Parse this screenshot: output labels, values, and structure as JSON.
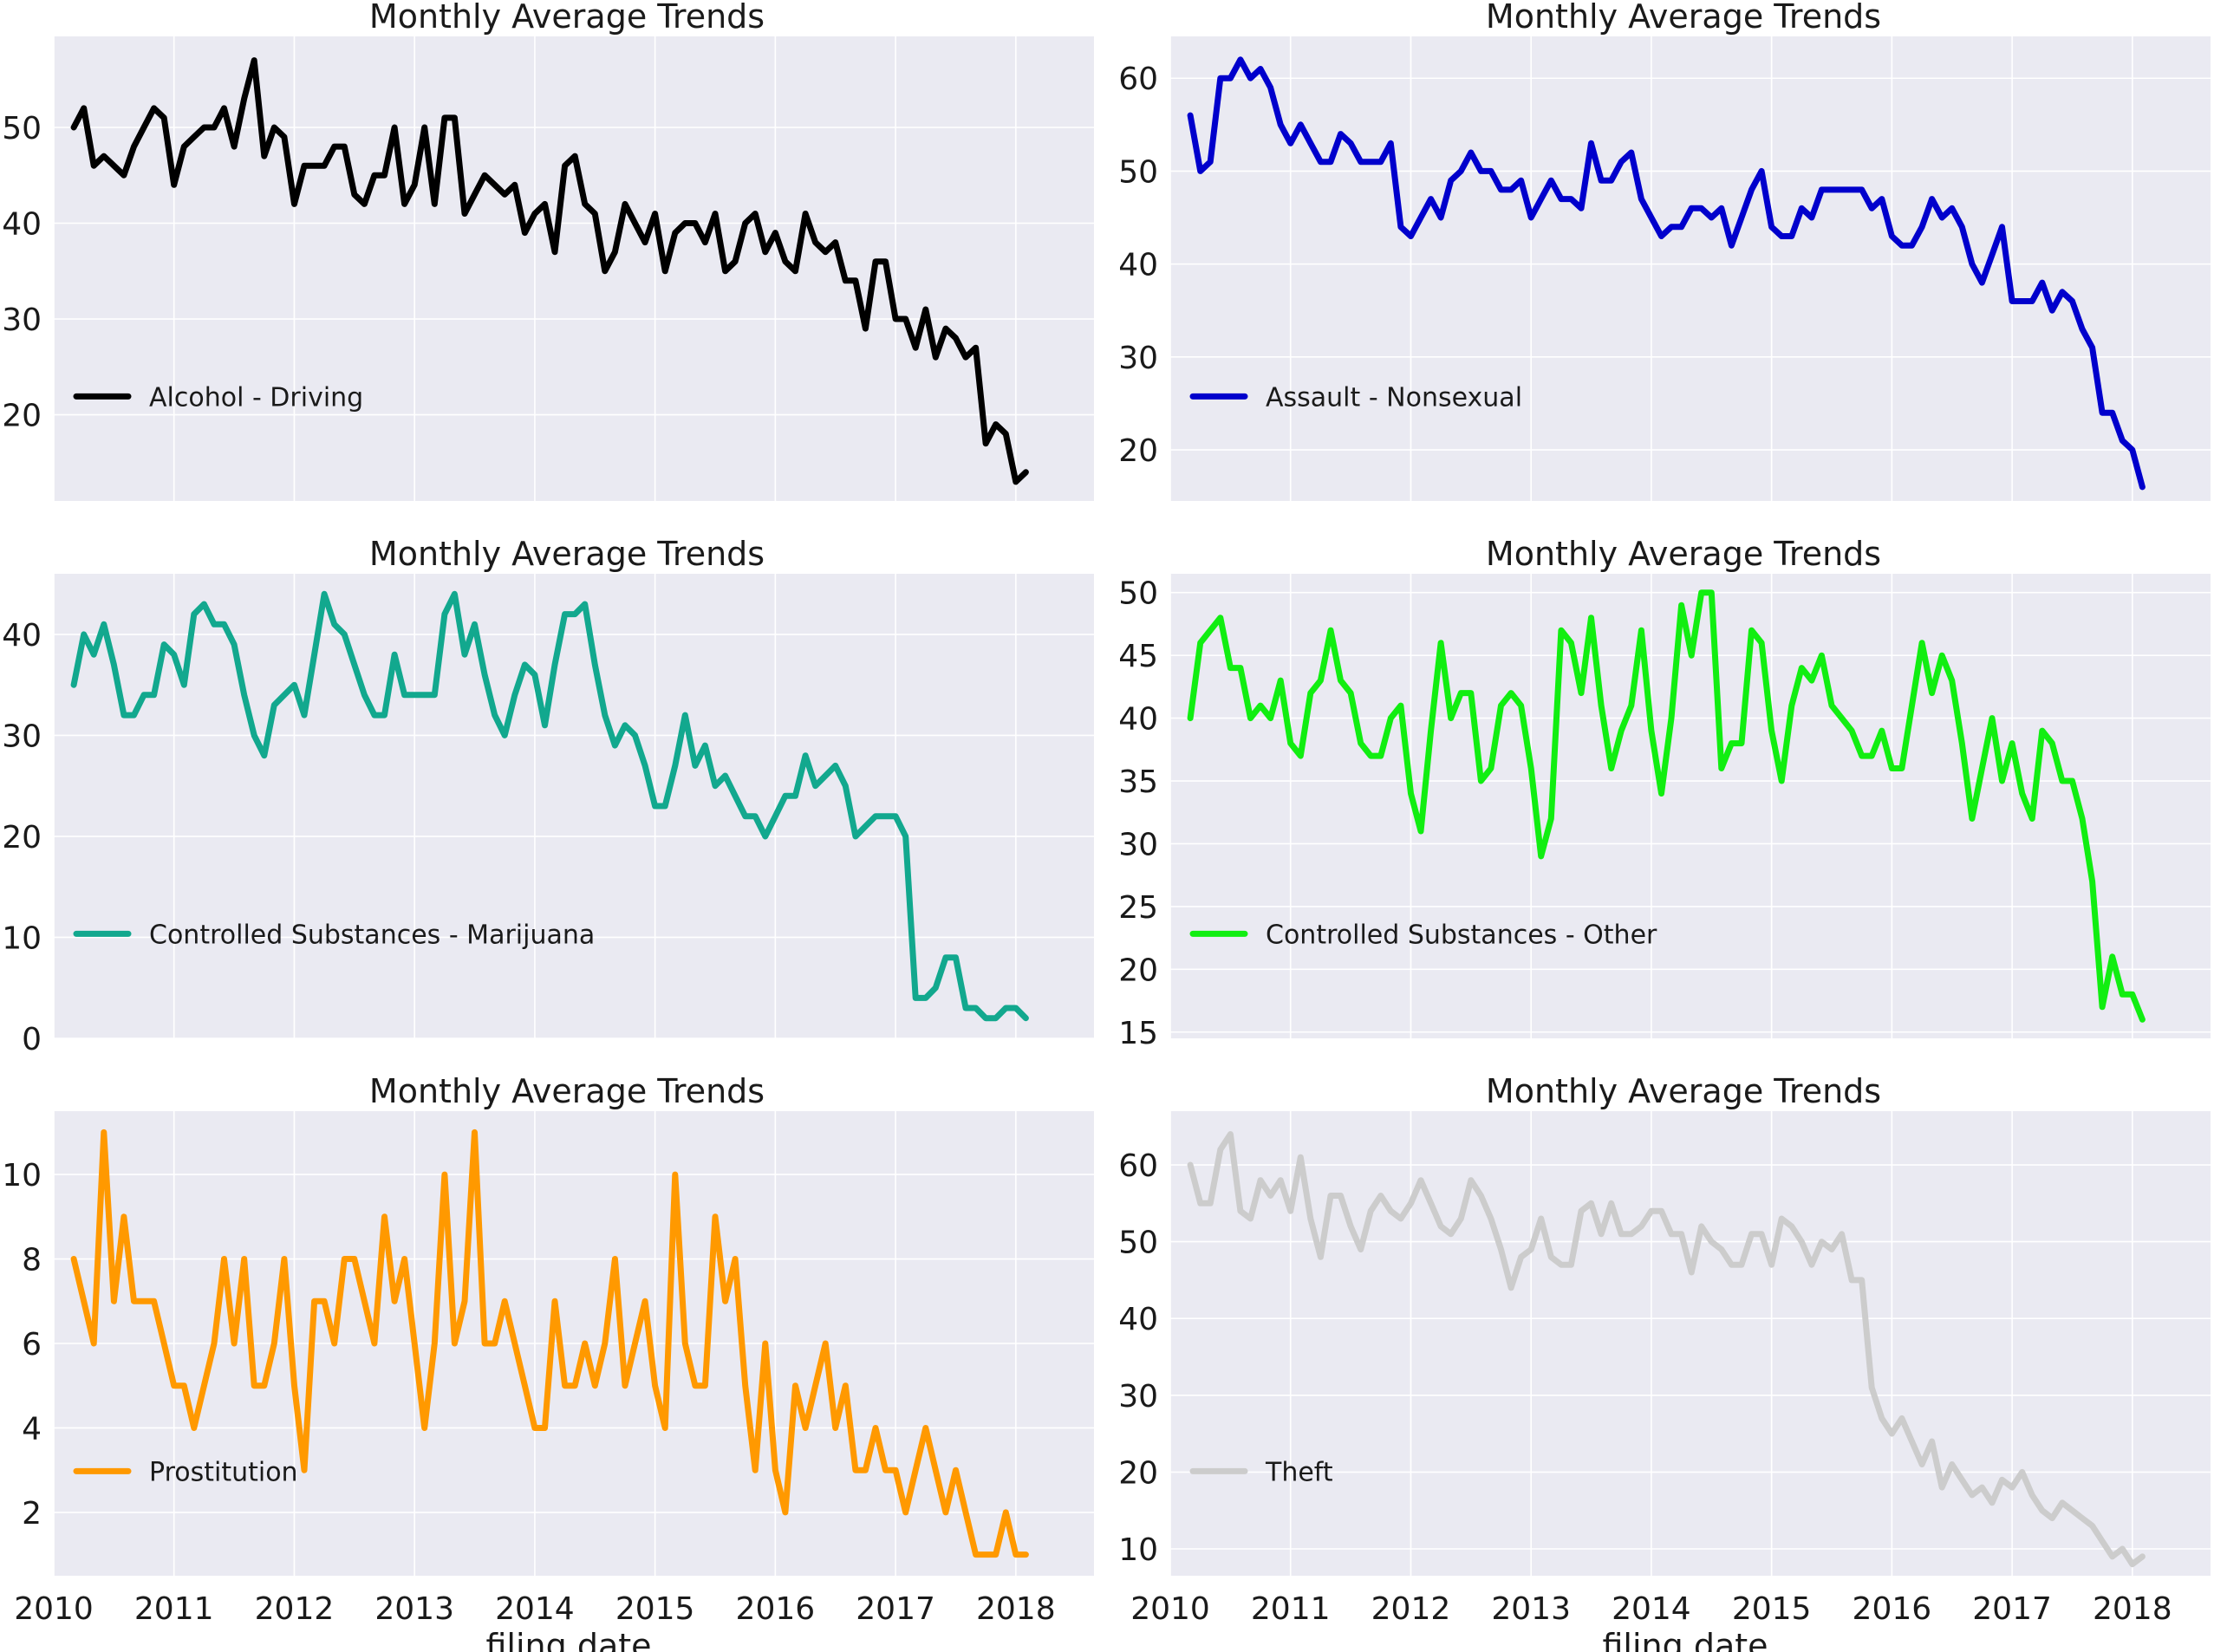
{
  "chart_data": [
    {
      "type": "line",
      "title": "Monthly Average Trends",
      "xlabel": "",
      "ylabel": "",
      "x_start": "2010-03",
      "xlim": [
        2010.0,
        2018.65
      ],
      "ylim": [
        11,
        59.5
      ],
      "yticks": [
        20,
        30,
        40,
        50
      ],
      "xticks": [],
      "grid": true,
      "legend_placement": "center-left",
      "series": [
        {
          "name": "Alcohol - Driving",
          "color": "#000000",
          "values": [
            50,
            52,
            46,
            47,
            46,
            45,
            48,
            50,
            52,
            51,
            44,
            48,
            49,
            50,
            50,
            52,
            48,
            53,
            57,
            47,
            50,
            49,
            42,
            46,
            46,
            46,
            48,
            48,
            43,
            42,
            45,
            45,
            50,
            42,
            44,
            50,
            42,
            51,
            51,
            41,
            43,
            45,
            44,
            43,
            44,
            39,
            41,
            42,
            37,
            46,
            47,
            42,
            41,
            35,
            37,
            42,
            40,
            38,
            41,
            35,
            39,
            40,
            40,
            38,
            41,
            35,
            36,
            40,
            41,
            37,
            39,
            36,
            35,
            41,
            38,
            37,
            38,
            34,
            34,
            29,
            36,
            36,
            30,
            30,
            27,
            31,
            26,
            29,
            28,
            26,
            27,
            17,
            19,
            18,
            13,
            14
          ]
        }
      ]
    },
    {
      "type": "line",
      "title": "Monthly Average Trends",
      "xlabel": "",
      "ylabel": "",
      "x_start": "2010-03",
      "xlim": [
        2010.0,
        2018.65
      ],
      "ylim": [
        14.5,
        64.5
      ],
      "yticks": [
        20,
        30,
        40,
        50,
        60
      ],
      "xticks": [],
      "grid": true,
      "legend_placement": "center-left",
      "series": [
        {
          "name": "Assault - Nonsexual",
          "color": "#0000cc",
          "values": [
            56,
            50,
            51,
            60,
            60,
            62,
            60,
            61,
            59,
            55,
            53,
            55,
            53,
            51,
            51,
            54,
            53,
            51,
            51,
            51,
            53,
            44,
            43,
            45,
            47,
            45,
            49,
            50,
            52,
            50,
            50,
            48,
            48,
            49,
            45,
            47,
            49,
            47,
            47,
            46,
            53,
            49,
            49,
            51,
            52,
            47,
            45,
            43,
            44,
            44,
            46,
            46,
            45,
            46,
            42,
            45,
            48,
            50,
            44,
            43,
            43,
            46,
            45,
            48,
            48,
            48,
            48,
            48,
            46,
            47,
            43,
            42,
            42,
            44,
            47,
            45,
            46,
            44,
            40,
            38,
            41,
            44,
            36,
            36,
            36,
            38,
            35,
            37,
            36,
            33,
            31,
            24,
            24,
            21,
            20,
            16
          ]
        }
      ]
    },
    {
      "type": "line",
      "title": "Monthly Average Trends",
      "xlabel": "",
      "ylabel": "",
      "x_start": "2010-03",
      "xlim": [
        2010.0,
        2018.65
      ],
      "ylim": [
        0,
        46
      ],
      "yticks": [
        0,
        10,
        20,
        30,
        40
      ],
      "xticks": [],
      "grid": true,
      "legend_placement": "center-left",
      "series": [
        {
          "name": "Controlled Substances - Marijuana",
          "color": "#12a88e",
          "values": [
            35,
            40,
            38,
            41,
            37,
            32,
            32,
            34,
            34,
            39,
            38,
            35,
            42,
            43,
            41,
            41,
            39,
            34,
            30,
            28,
            33,
            34,
            35,
            32,
            38,
            44,
            41,
            40,
            37,
            34,
            32,
            32,
            38,
            34,
            34,
            34,
            34,
            42,
            44,
            38,
            41,
            36,
            32,
            30,
            34,
            37,
            36,
            31,
            37,
            42,
            42,
            43,
            37,
            32,
            29,
            31,
            30,
            27,
            23,
            23,
            27,
            32,
            27,
            29,
            25,
            26,
            24,
            22,
            22,
            20,
            22,
            24,
            24,
            28,
            25,
            26,
            27,
            25,
            20,
            21,
            22,
            22,
            22,
            20,
            4,
            4,
            5,
            8,
            8,
            3,
            3,
            2,
            2,
            3,
            3,
            2
          ]
        }
      ]
    },
    {
      "type": "line",
      "title": "Monthly Average Trends",
      "xlabel": "",
      "ylabel": "",
      "x_start": "2010-03",
      "xlim": [
        2010.0,
        2018.65
      ],
      "ylim": [
        14.5,
        51.5
      ],
      "yticks": [
        15,
        20,
        25,
        30,
        35,
        40,
        45,
        50
      ],
      "xticks": [],
      "grid": true,
      "legend_placement": "center-left",
      "series": [
        {
          "name": "Controlled Substances - Other",
          "color": "#11ee11",
          "values": [
            40,
            46,
            47,
            48,
            44,
            44,
            40,
            41,
            40,
            43,
            38,
            37,
            42,
            43,
            47,
            43,
            42,
            38,
            37,
            37,
            40,
            41,
            34,
            31,
            39,
            46,
            40,
            42,
            42,
            35,
            36,
            41,
            42,
            41,
            36,
            29,
            32,
            47,
            46,
            42,
            48,
            41,
            36,
            39,
            41,
            47,
            39,
            34,
            40,
            49,
            45,
            50,
            50,
            36,
            38,
            38,
            47,
            46,
            39,
            35,
            41,
            44,
            43,
            45,
            41,
            40,
            39,
            37,
            37,
            39,
            36,
            36,
            41,
            46,
            42,
            45,
            43,
            38,
            32,
            36,
            40,
            35,
            38,
            34,
            32,
            39,
            38,
            35,
            35,
            32,
            27,
            17,
            21,
            18,
            18,
            16
          ]
        }
      ]
    },
    {
      "type": "line",
      "title": "Monthly Average Trends",
      "xlabel": "filing date",
      "ylabel": "",
      "x_start": "2010-03",
      "xlim": [
        2010.0,
        2018.65
      ],
      "ylim": [
        0.5,
        11.5
      ],
      "yticks": [
        2,
        4,
        6,
        8,
        10
      ],
      "xticks": [
        2010,
        2011,
        2012,
        2013,
        2014,
        2015,
        2016,
        2017,
        2018
      ],
      "grid": true,
      "legend_placement": "center-left",
      "series": [
        {
          "name": "Prostitution",
          "color": "#ff9900",
          "values": [
            8,
            7,
            6,
            11,
            7,
            9,
            7,
            7,
            7,
            6,
            5,
            5,
            4,
            5,
            6,
            8,
            6,
            8,
            5,
            5,
            6,
            8,
            5,
            3,
            7,
            7,
            6,
            8,
            8,
            7,
            6,
            9,
            7,
            8,
            6,
            4,
            6,
            10,
            6,
            7,
            11,
            6,
            6,
            7,
            6,
            5,
            4,
            4,
            7,
            5,
            5,
            6,
            5,
            6,
            8,
            5,
            6,
            7,
            5,
            4,
            10,
            6,
            5,
            5,
            9,
            7,
            8,
            5,
            3,
            6,
            3,
            2,
            5,
            4,
            5,
            6,
            4,
            5,
            3,
            3,
            4,
            3,
            3,
            2,
            3,
            4,
            3,
            2,
            3,
            2,
            1,
            1,
            1,
            2,
            1,
            1
          ]
        }
      ]
    },
    {
      "type": "line",
      "title": "Monthly Average Trends",
      "xlabel": "filing date",
      "ylabel": "",
      "x_start": "2010-03",
      "xlim": [
        2010.0,
        2018.65
      ],
      "ylim": [
        6.5,
        67
      ],
      "yticks": [
        10,
        20,
        30,
        40,
        50,
        60
      ],
      "xticks": [
        2010,
        2011,
        2012,
        2013,
        2014,
        2015,
        2016,
        2017,
        2018
      ],
      "grid": true,
      "legend_placement": "center-left",
      "series": [
        {
          "name": "Theft",
          "color": "#cccccc",
          "values": [
            60,
            55,
            55,
            62,
            64,
            54,
            53,
            58,
            56,
            58,
            54,
            61,
            53,
            48,
            56,
            56,
            52,
            49,
            54,
            56,
            54,
            53,
            55,
            58,
            55,
            52,
            51,
            53,
            58,
            56,
            53,
            49,
            44,
            48,
            49,
            53,
            48,
            47,
            47,
            54,
            55,
            51,
            55,
            51,
            51,
            52,
            54,
            54,
            51,
            51,
            46,
            52,
            50,
            49,
            47,
            47,
            51,
            51,
            47,
            53,
            52,
            50,
            47,
            50,
            49,
            51,
            45,
            45,
            31,
            27,
            25,
            27,
            24,
            21,
            24,
            18,
            21,
            19,
            17,
            18,
            16,
            19,
            18,
            20,
            17,
            15,
            14,
            16,
            15,
            14,
            13,
            11,
            9,
            10,
            8,
            9
          ]
        }
      ]
    }
  ]
}
